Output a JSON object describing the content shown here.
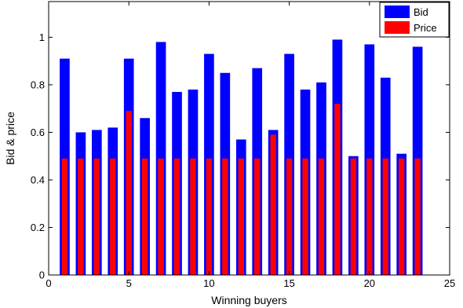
{
  "chart_data": {
    "type": "bar",
    "title": "",
    "xlabel": "Winning buyers",
    "ylabel": "Bid & price",
    "xlim": [
      0,
      25
    ],
    "ylim": [
      0,
      1.15
    ],
    "xticks": [
      0,
      5,
      10,
      15,
      20,
      25
    ],
    "yticks": [
      0,
      0.2,
      0.4,
      0.6,
      0.8,
      1
    ],
    "xtick_labels": [
      "0",
      "5",
      "10",
      "15",
      "20",
      "25"
    ],
    "ytick_labels": [
      "0",
      "0.2",
      "0.4",
      "0.6",
      "0.8",
      "1"
    ],
    "grid": false,
    "legend_position": "top-right",
    "x": [
      1,
      2,
      3,
      4,
      5,
      6,
      7,
      8,
      9,
      10,
      11,
      12,
      13,
      14,
      15,
      16,
      17,
      18,
      19,
      20,
      21,
      22,
      23
    ],
    "series": [
      {
        "name": "Bid",
        "color": "#0000ff",
        "values": [
          0.91,
          0.6,
          0.61,
          0.62,
          0.91,
          0.66,
          0.98,
          0.77,
          0.78,
          0.93,
          0.85,
          0.57,
          0.87,
          0.61,
          0.93,
          0.78,
          0.81,
          0.99,
          0.5,
          0.97,
          0.83,
          0.51,
          0.96
        ]
      },
      {
        "name": "Price",
        "color": "#ff0000",
        "values": [
          0.49,
          0.49,
          0.49,
          0.49,
          0.69,
          0.49,
          0.49,
          0.49,
          0.49,
          0.49,
          0.49,
          0.49,
          0.49,
          0.59,
          0.49,
          0.49,
          0.49,
          0.72,
          0.49,
          0.49,
          0.49,
          0.49,
          0.49
        ]
      }
    ]
  }
}
